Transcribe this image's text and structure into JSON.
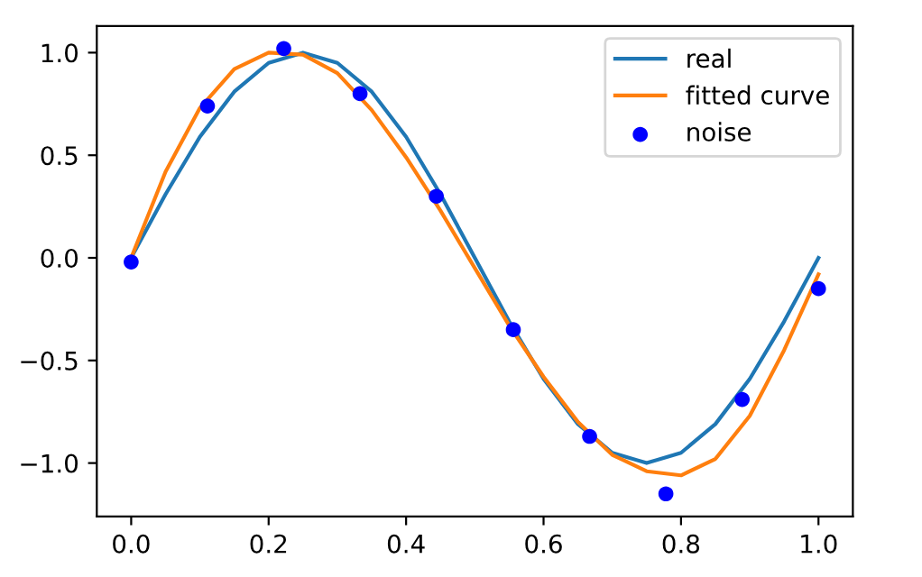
{
  "chart_data": {
    "type": "line",
    "xlim": [
      -0.05,
      1.05
    ],
    "ylim": [
      -1.26,
      1.13
    ],
    "xticks": [
      {
        "value": 0,
        "label": "0.0"
      },
      0.2,
      0.4,
      0.6,
      0.8,
      {
        "value": 1,
        "label": "1.0"
      }
    ],
    "yticks": [
      {
        "value": -1,
        "label": "−1.0"
      },
      {
        "value": -0.5,
        "label": "−0.5"
      },
      {
        "value": 0,
        "label": "0.0"
      },
      0.5,
      {
        "value": 1,
        "label": "1.0"
      }
    ],
    "grid": false,
    "legend": "top right",
    "series": [
      {
        "name": "real",
        "color": "#1f77b4",
        "x": [
          0,
          0.05,
          0.1,
          0.15,
          0.2,
          0.25,
          0.3,
          0.35,
          0.4,
          0.45,
          0.5,
          0.55,
          0.6,
          0.65,
          0.7,
          0.75,
          0.8,
          0.85,
          0.9,
          0.95,
          1.0
        ],
        "values": [
          0,
          0.31,
          0.59,
          0.81,
          0.95,
          1.0,
          0.95,
          0.81,
          0.59,
          0.31,
          0,
          -0.31,
          -0.59,
          -0.81,
          -0.95,
          -1.0,
          -0.95,
          -0.81,
          -0.59,
          -0.31,
          0
        ]
      },
      {
        "name": "fitted curve",
        "color": "#ff7f0e",
        "x": [
          0,
          0.05,
          0.1,
          0.15,
          0.2,
          0.25,
          0.3,
          0.35,
          0.4,
          0.45,
          0.5,
          0.55,
          0.6,
          0.65,
          0.7,
          0.75,
          0.8,
          0.85,
          0.9,
          0.95,
          1.0
        ],
        "values": [
          0.0,
          0.42,
          0.73,
          0.92,
          1.0,
          0.99,
          0.9,
          0.72,
          0.49,
          0.23,
          -0.05,
          -0.33,
          -0.58,
          -0.8,
          -0.96,
          -1.04,
          -1.06,
          -0.98,
          -0.77,
          -0.45,
          -0.08
        ]
      },
      {
        "name": "noise",
        "type": "scatter",
        "color": "#0000ff",
        "marker": "circle",
        "x": [
          0,
          0.111,
          0.222,
          0.333,
          0.444,
          0.556,
          0.667,
          0.778,
          0.889,
          1.0
        ],
        "values": [
          -0.02,
          0.74,
          1.02,
          0.8,
          0.3,
          -0.35,
          -0.87,
          -1.15,
          -0.69,
          -0.15
        ]
      }
    ]
  }
}
